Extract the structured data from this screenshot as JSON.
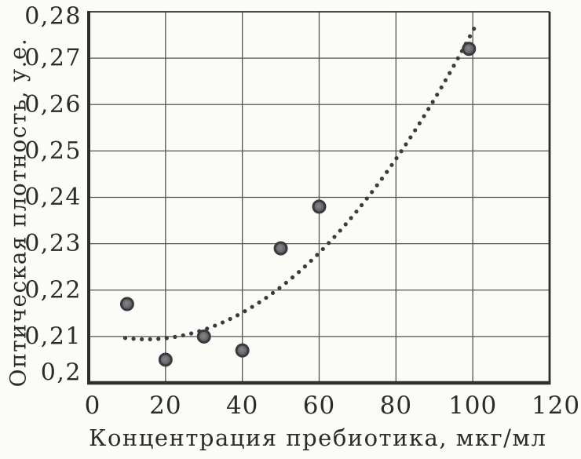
{
  "chart_data": {
    "type": "scatter",
    "title": "",
    "xlabel": "Концентрация пребиотика, мкг/мл",
    "ylabel": "Оптическая плотность, у.е.",
    "xlim": [
      0,
      120
    ],
    "ylim": [
      0.2,
      0.28
    ],
    "x_ticks": [
      0,
      20,
      40,
      60,
      80,
      100,
      120
    ],
    "x_tick_labels": [
      "0",
      "20",
      "40",
      "60",
      "80",
      "100",
      "120"
    ],
    "y_ticks": [
      0.2,
      0.21,
      0.22,
      0.23,
      0.24,
      0.25,
      0.26,
      0.27,
      0.28
    ],
    "y_tick_labels": [
      "0,2",
      "0,21",
      "0,22",
      "0,23",
      "0,24",
      "0,25",
      "0,26",
      "0,27",
      "0,28"
    ],
    "grid": true,
    "legend": null,
    "decimal_separator": ",",
    "points": [
      {
        "x": 10,
        "y": 0.217
      },
      {
        "x": 20,
        "y": 0.205
      },
      {
        "x": 30,
        "y": 0.21
      },
      {
        "x": 40,
        "y": 0.207
      },
      {
        "x": 50,
        "y": 0.229
      },
      {
        "x": 60,
        "y": 0.238
      },
      {
        "x": 99,
        "y": 0.272
      }
    ],
    "trendline": {
      "style": "dotted",
      "model": "quadratic",
      "params": {
        "base": 0.2094,
        "k": 9.2e-06,
        "x0": 15
      },
      "x_range": [
        9.5,
        100.5
      ]
    },
    "colors": {
      "background": "#fbfbf8",
      "point_fill": "#87878b",
      "point_core": "#5c5c60",
      "point_stroke": "#3a3a3e",
      "trend_dot": "#3b3b3b",
      "grid_line": "#525252",
      "axis_line": "#2e2e2e",
      "text": "#2b2b2b"
    }
  }
}
